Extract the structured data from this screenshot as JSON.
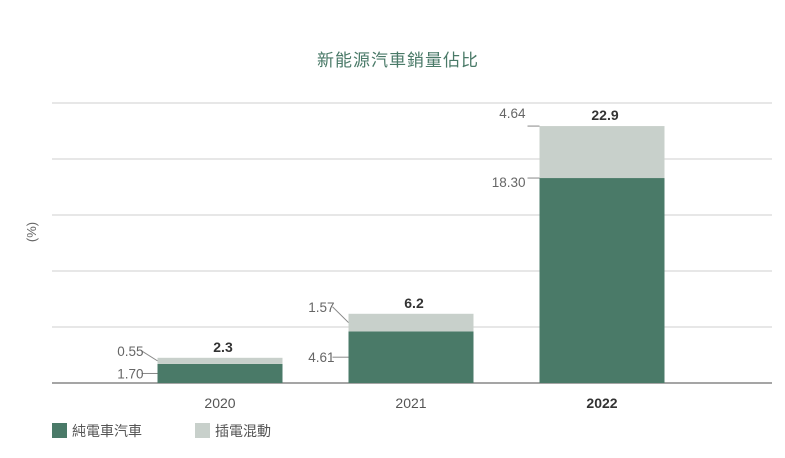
{
  "chart_data": {
    "type": "bar",
    "stacked": true,
    "title": "新能源汽車銷量佔比",
    "ylabel": "(%)",
    "categories": [
      "2020",
      "2021",
      "2022"
    ],
    "highlight_category": "2022",
    "series": [
      {
        "name": "純電車汽車",
        "values": [
          1.7,
          4.61,
          18.3
        ],
        "labels": [
          "1.70",
          "4.61",
          "18.30"
        ],
        "color": "#4a7a68"
      },
      {
        "name": "插電混動",
        "values": [
          0.55,
          1.57,
          4.64
        ],
        "labels": [
          "0.55",
          "1.57",
          "4.64"
        ],
        "color": "#c8d0cb"
      }
    ],
    "totals": [
      "2.3",
      "6.2",
      "22.9"
    ],
    "ylim": [
      0,
      25
    ],
    "grid": true,
    "legend": "bottom-left"
  }
}
